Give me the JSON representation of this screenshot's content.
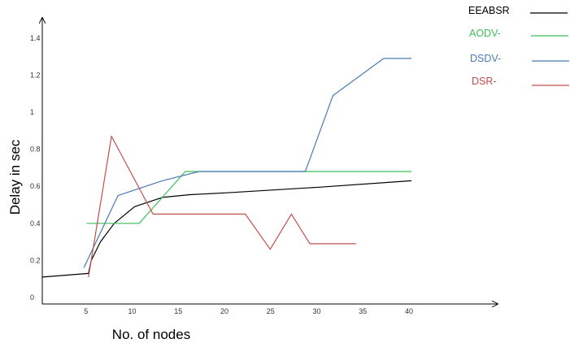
{
  "chart_data": {
    "type": "line",
    "title": "",
    "xlabel": "No. of  nodes",
    "ylabel": "Delay in sec",
    "x_ticks": [
      "5",
      "10",
      "15",
      "20",
      "25",
      "30",
      "35",
      "40"
    ],
    "y_ticks": [
      "0",
      "0.2",
      "0.4",
      "0.6",
      "0.8",
      "1",
      "1.2",
      "1.4"
    ],
    "xlim": [
      0,
      45
    ],
    "ylim": [
      0,
      1.45
    ],
    "grid": false,
    "legend_position": "top-right",
    "series": [
      {
        "name": "EEABSR",
        "color": "#000000",
        "points": [
          [
            0,
            0.11
          ],
          [
            5,
            0.13
          ],
          [
            5.3,
            0.2
          ],
          [
            6.3,
            0.3
          ],
          [
            7.8,
            0.4
          ],
          [
            10,
            0.49
          ],
          [
            13,
            0.54
          ],
          [
            16,
            0.555
          ],
          [
            20,
            0.565
          ],
          [
            30,
            0.595
          ],
          [
            40,
            0.63
          ]
        ]
      },
      {
        "name": "AODV-",
        "color": "#3cbf5a",
        "points": [
          [
            4.8,
            0.4
          ],
          [
            10.5,
            0.4
          ],
          [
            15.5,
            0.68
          ],
          [
            40,
            0.68
          ]
        ]
      },
      {
        "name": "DSDV-",
        "color": "#4a7bb5",
        "points": [
          [
            4.5,
            0.16
          ],
          [
            8.2,
            0.55
          ],
          [
            13,
            0.63
          ],
          [
            17,
            0.68
          ],
          [
            28.5,
            0.68
          ],
          [
            31.5,
            1.09
          ],
          [
            37,
            1.29
          ],
          [
            40,
            1.29
          ]
        ]
      },
      {
        "name": "DSR-",
        "color": "#c0504d",
        "points": [
          [
            5,
            0.11
          ],
          [
            7.5,
            0.87
          ],
          [
            12,
            0.45
          ],
          [
            22,
            0.45
          ],
          [
            24.7,
            0.26
          ],
          [
            27,
            0.45
          ],
          [
            29,
            0.29
          ],
          [
            34,
            0.29
          ]
        ]
      }
    ]
  }
}
